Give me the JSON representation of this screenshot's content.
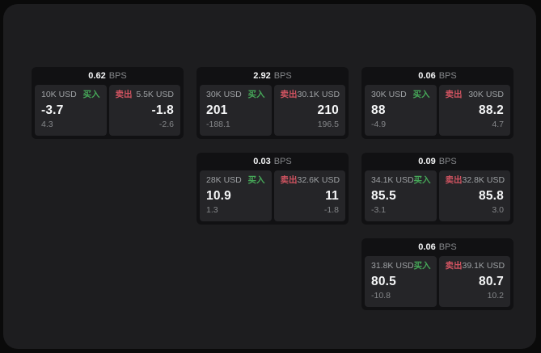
{
  "colors": {
    "page-bg": "#0a0a0a",
    "panel-bg": "#1d1d1f",
    "card-bg": "#111113",
    "pane-bg": "#252528",
    "text-primary": "#f5f6f7",
    "text-muted": "#9da0a3",
    "text-dim": "#85878a",
    "buy-green": "#46a758",
    "sell-red": "#d15461"
  },
  "cards": [
    {
      "bps": "0.62",
      "unit": "BPS",
      "buy": {
        "amount": "10K USD",
        "tag": "买入",
        "price": "-3.7",
        "delta": "4.3"
      },
      "sell": {
        "tag": "卖出",
        "amount": "5.5K USD",
        "price": "-1.8",
        "delta": "-2.6"
      }
    },
    {
      "bps": "2.92",
      "unit": "BPS",
      "buy": {
        "amount": "30K USD",
        "tag": "买入",
        "price": "201",
        "delta": "-188.1"
      },
      "sell": {
        "tag": "卖出",
        "amount": "30.1K USD",
        "price": "210",
        "delta": "196.5"
      }
    },
    {
      "bps": "0.06",
      "unit": "BPS",
      "buy": {
        "amount": "30K USD",
        "tag": "买入",
        "price": "88",
        "delta": "-4.9"
      },
      "sell": {
        "tag": "卖出",
        "amount": "30K USD",
        "price": "88.2",
        "delta": "4.7"
      }
    },
    {
      "bps": "0.03",
      "unit": "BPS",
      "buy": {
        "amount": "28K USD",
        "tag": "买入",
        "price": "10.9",
        "delta": "1.3"
      },
      "sell": {
        "tag": "卖出",
        "amount": "32.6K USD",
        "price": "11",
        "delta": "-1.8"
      }
    },
    {
      "bps": "0.09",
      "unit": "BPS",
      "buy": {
        "amount": "34.1K USD",
        "tag": "买入",
        "price": "85.5",
        "delta": "-3.1"
      },
      "sell": {
        "tag": "卖出",
        "amount": "32.8K USD",
        "price": "85.8",
        "delta": "3.0"
      }
    },
    {
      "bps": "0.06",
      "unit": "BPS",
      "buy": {
        "amount": "31.8K USD",
        "tag": "买入",
        "price": "80.5",
        "delta": "-10.8"
      },
      "sell": {
        "tag": "卖出",
        "amount": "39.1K USD",
        "price": "80.7",
        "delta": "10.2"
      }
    }
  ]
}
